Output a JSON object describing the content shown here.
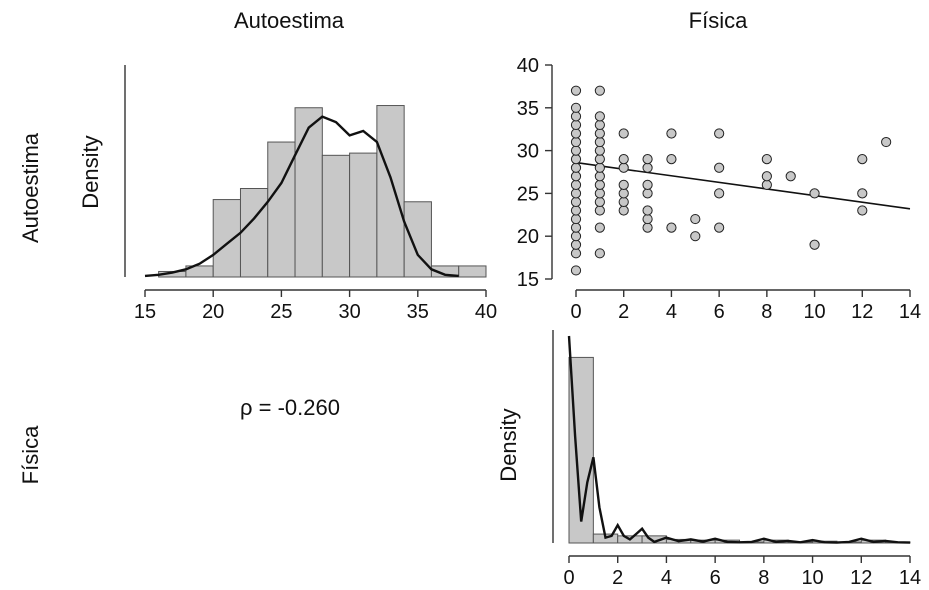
{
  "variables": [
    "Autoestima",
    "Física"
  ],
  "correlation_text": "ρ = -0.260",
  "chart_data": [
    {
      "type": "bar",
      "panel": "histogram-autoestima",
      "ylabel": "Density",
      "xlim": [
        15,
        40
      ],
      "xticks": [
        15,
        20,
        25,
        30,
        35,
        40
      ],
      "bin_edges": [
        16,
        18,
        20,
        22,
        24,
        26,
        28,
        30,
        32,
        34,
        36,
        38
      ],
      "values": [
        0.005,
        0.01,
        0.07,
        0.08,
        0.122,
        0.153,
        0.11,
        0.112,
        0.155,
        0.068,
        0.01,
        0.01
      ],
      "density_curve": {
        "x": [
          15,
          16,
          17,
          18,
          19,
          20,
          21,
          22,
          23,
          24,
          25,
          26,
          27,
          28,
          29,
          30,
          31,
          32,
          33,
          34,
          35,
          36,
          37,
          38
        ],
        "y": [
          0.001,
          0.002,
          0.004,
          0.007,
          0.012,
          0.02,
          0.03,
          0.04,
          0.053,
          0.068,
          0.085,
          0.11,
          0.135,
          0.145,
          0.14,
          0.128,
          0.132,
          0.122,
          0.09,
          0.05,
          0.02,
          0.007,
          0.002,
          0.001
        ]
      }
    },
    {
      "type": "scatter",
      "panel": "scatter-fisica-vs-autoestima",
      "xlim": [
        0,
        14
      ],
      "ylim": [
        15,
        40
      ],
      "xticks": [
        0,
        2,
        4,
        6,
        8,
        10,
        12,
        14
      ],
      "yticks": [
        15,
        20,
        25,
        30,
        35,
        40
      ],
      "points": [
        [
          0,
          16
        ],
        [
          0,
          18
        ],
        [
          0,
          19
        ],
        [
          0,
          20
        ],
        [
          0,
          21
        ],
        [
          0,
          22
        ],
        [
          0,
          23
        ],
        [
          0,
          24
        ],
        [
          0,
          25
        ],
        [
          0,
          26
        ],
        [
          0,
          27
        ],
        [
          0,
          28
        ],
        [
          0,
          29
        ],
        [
          0,
          30
        ],
        [
          0,
          31
        ],
        [
          0,
          32
        ],
        [
          0,
          33
        ],
        [
          0,
          34
        ],
        [
          0,
          35
        ],
        [
          0,
          37
        ],
        [
          1,
          18
        ],
        [
          1,
          21
        ],
        [
          1,
          23
        ],
        [
          1,
          24
        ],
        [
          1,
          25
        ],
        [
          1,
          26
        ],
        [
          1,
          27
        ],
        [
          1,
          28
        ],
        [
          1,
          29
        ],
        [
          1,
          30
        ],
        [
          1,
          31
        ],
        [
          1,
          32
        ],
        [
          1,
          33
        ],
        [
          1,
          34
        ],
        [
          1,
          37
        ],
        [
          2,
          23
        ],
        [
          2,
          24
        ],
        [
          2,
          25
        ],
        [
          2,
          26
        ],
        [
          2,
          28
        ],
        [
          2,
          29
        ],
        [
          2,
          32
        ],
        [
          3,
          21
        ],
        [
          3,
          22
        ],
        [
          3,
          23
        ],
        [
          3,
          25
        ],
        [
          3,
          26
        ],
        [
          3,
          28
        ],
        [
          3,
          29
        ],
        [
          4,
          21
        ],
        [
          4,
          29
        ],
        [
          4,
          32
        ],
        [
          5,
          20
        ],
        [
          5,
          22
        ],
        [
          6,
          21
        ],
        [
          6,
          25
        ],
        [
          6,
          28
        ],
        [
          6,
          32
        ],
        [
          8,
          26
        ],
        [
          8,
          27
        ],
        [
          8,
          29
        ],
        [
          9,
          27
        ],
        [
          10,
          19
        ],
        [
          10,
          25
        ],
        [
          12,
          23
        ],
        [
          12,
          25
        ],
        [
          12,
          29
        ],
        [
          13,
          31
        ]
      ],
      "regression_line": {
        "x": [
          0,
          14
        ],
        "y": [
          28.6,
          23.2
        ]
      }
    },
    {
      "type": "bar",
      "panel": "histogram-fisica",
      "ylabel": "Density",
      "xlim": [
        0,
        14
      ],
      "xticks": [
        0,
        2,
        4,
        6,
        8,
        10,
        12,
        14
      ],
      "bin_edges": [
        0,
        1,
        2,
        3,
        4,
        5,
        6,
        7,
        8,
        9,
        10,
        11,
        12,
        13,
        14
      ],
      "values": [
        0.52,
        0.025,
        0.02,
        0.02,
        0.01,
        0.008,
        0.008,
        0.003,
        0.008,
        0.003,
        0.005,
        0.003,
        0.008,
        0.003
      ],
      "density_curve": {
        "x": [
          0,
          0.25,
          0.5,
          0.75,
          1,
          1.25,
          1.5,
          1.75,
          2,
          2.25,
          2.5,
          2.75,
          3,
          3.25,
          3.5,
          4,
          4.5,
          5,
          5.5,
          6,
          6.5,
          7,
          7.5,
          8,
          8.5,
          9,
          9.5,
          10,
          10.5,
          11,
          11.5,
          12,
          12.5,
          13,
          13.5,
          14
        ],
        "y": [
          0.58,
          0.3,
          0.06,
          0.17,
          0.24,
          0.1,
          0.015,
          0.02,
          0.05,
          0.02,
          0.01,
          0.025,
          0.04,
          0.015,
          0.003,
          0.015,
          0.005,
          0.01,
          0.004,
          0.012,
          0.003,
          0.002,
          0.003,
          0.012,
          0.003,
          0.006,
          0.002,
          0.008,
          0.002,
          0.001,
          0.003,
          0.012,
          0.003,
          0.006,
          0.002,
          0.001
        ]
      }
    }
  ]
}
